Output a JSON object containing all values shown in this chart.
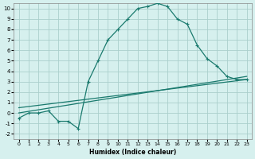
{
  "xlabel": "Humidex (Indice chaleur)",
  "bg_color": "#d6f0ee",
  "grid_color": "#aacfcc",
  "line_color": "#1a7a6e",
  "xlim": [
    -0.5,
    23.5
  ],
  "ylim": [
    -2.5,
    10.5
  ],
  "xticks": [
    0,
    1,
    2,
    3,
    4,
    5,
    6,
    7,
    8,
    9,
    10,
    11,
    12,
    13,
    14,
    15,
    16,
    17,
    18,
    19,
    20,
    21,
    22,
    23
  ],
  "yticks": [
    -2,
    -1,
    0,
    1,
    2,
    3,
    4,
    5,
    6,
    7,
    8,
    9,
    10
  ],
  "curve1_x": [
    0,
    1,
    2,
    3,
    4,
    5,
    6,
    7,
    8,
    9,
    10,
    11,
    12,
    13,
    14,
    15,
    16,
    17,
    18,
    19,
    20,
    21,
    22,
    23
  ],
  "curve1_y": [
    -0.5,
    0.0,
    0.0,
    0.2,
    -0.8,
    -0.8,
    -1.5,
    3.0,
    5.0,
    7.0,
    8.0,
    9.0,
    10.0,
    10.2,
    10.5,
    10.2,
    9.0,
    8.5,
    6.5,
    5.2,
    4.5,
    3.5,
    3.2,
    3.2
  ],
  "curve2_x": [
    0,
    23
  ],
  "curve2_y": [
    0.5,
    3.2
  ],
  "curve3_x": [
    0,
    23
  ],
  "curve3_y": [
    0.0,
    3.5
  ]
}
